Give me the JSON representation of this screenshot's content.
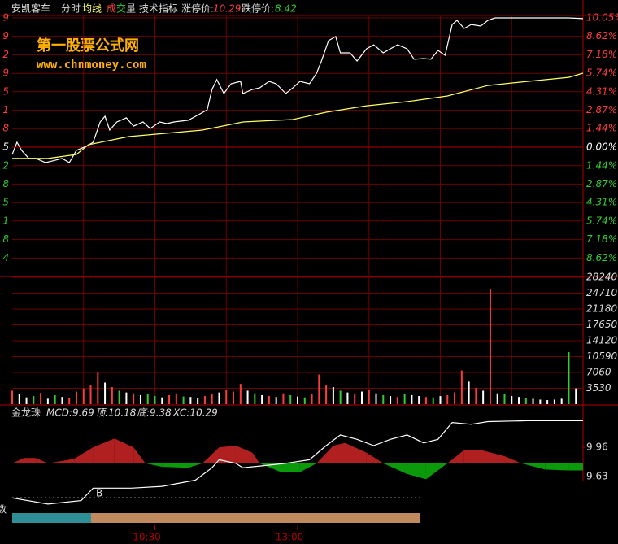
{
  "toolbar": {
    "name": "安凯客车",
    "tab_time": "分时",
    "tab_avg": "均线",
    "tab_vol_1": "成",
    "tab_vol_2": "交",
    "tab_vol_3": "量",
    "tab_tech": "技术指标",
    "limit_up_label": "涨停价:",
    "limit_up": "10.29",
    "limit_down_label": "跌停价:",
    "limit_down": "8.42"
  },
  "watermark": {
    "title": "第一股票公式网",
    "url": "www.chnmoney.com"
  },
  "chart_data": [
    {
      "type": "line",
      "xlim": [
        0,
        240
      ],
      "ylim": [
        -10.05,
        10.05
      ],
      "xgrid_lines": [
        30,
        60,
        90,
        120,
        150,
        180,
        210
      ],
      "up_color": "#ff3c3c",
      "down_color": "#33cc33",
      "flat_color": "#ffffff",
      "grid": true,
      "yticks": [
        {
          "value": 10.05,
          "label": "10.05%"
        },
        {
          "value": 8.62,
          "label": "8.62%"
        },
        {
          "value": 7.18,
          "label": "7.18%"
        },
        {
          "value": 5.74,
          "label": "5.74%"
        },
        {
          "value": 4.31,
          "label": "4.31%"
        },
        {
          "value": 2.87,
          "label": "2.87%"
        },
        {
          "value": 1.44,
          "label": "1.44%"
        },
        {
          "value": 0,
          "label": "0.00%"
        },
        {
          "value": -1.44,
          "label": "1.44%"
        },
        {
          "value": -2.87,
          "label": "2.87%"
        },
        {
          "value": -4.31,
          "label": "4.31%"
        },
        {
          "value": -5.74,
          "label": "5.74%"
        },
        {
          "value": -7.18,
          "label": "7.18%"
        },
        {
          "value": -8.62,
          "label": "8.62%"
        }
      ],
      "left_tick_labels": [
        "9",
        "9",
        "2",
        "9",
        "5",
        "1",
        "8",
        "5",
        "2",
        "8",
        "5",
        "1",
        "8",
        "4"
      ],
      "series": [
        {
          "color": "#ffffff",
          "x": [
            0,
            2,
            4,
            7,
            10,
            14,
            17,
            21,
            24,
            27,
            31,
            34,
            37,
            39,
            41,
            44,
            48,
            51,
            55,
            58,
            62,
            65,
            68,
            74,
            79,
            82,
            84,
            86,
            89,
            92,
            96,
            97,
            101,
            104,
            108,
            111,
            115,
            118,
            121,
            125,
            128,
            130,
            133,
            136,
            138,
            142,
            145,
            149,
            152,
            156,
            159,
            162,
            166,
            169,
            173,
            176,
            179,
            182,
            185,
            187,
            190,
            193,
            197,
            200,
            203,
            217,
            234,
            240
          ],
          "values": [
            -0.57,
            0.38,
            -0.25,
            -0.88,
            -0.88,
            -1.2,
            -1.07,
            -0.88,
            -1.2,
            -0.25,
            0.06,
            0.38,
            1.96,
            2.4,
            1.33,
            1.96,
            2.28,
            1.64,
            1.96,
            1.45,
            1.96,
            1.83,
            1.96,
            2.09,
            2.59,
            2.91,
            4.49,
            5.25,
            4.17,
            4.93,
            5.12,
            4.17,
            4.49,
            4.61,
            5.12,
            4.93,
            4.17,
            4.61,
            5.12,
            4.93,
            5.75,
            6.7,
            8.28,
            8.6,
            7.33,
            7.33,
            6.7,
            7.65,
            7.96,
            7.33,
            7.65,
            7.96,
            7.65,
            6.83,
            6.89,
            6.83,
            7.52,
            7.14,
            9.54,
            9.86,
            9.23,
            9.54,
            9.42,
            9.86,
            10.05,
            10.05,
            10.05,
            9.99
          ]
        },
        {
          "color": "#ffff66",
          "x": [
            0,
            15,
            27,
            32,
            49,
            80,
            97,
            118,
            132,
            149,
            166,
            183,
            200,
            217,
            234,
            240
          ],
          "values": [
            -0.88,
            -0.88,
            -0.57,
            0.19,
            0.82,
            1.33,
            1.96,
            2.15,
            2.72,
            3.22,
            3.54,
            3.98,
            4.8,
            5.12,
            5.43,
            5.75
          ]
        }
      ]
    },
    {
      "type": "bar",
      "xlim": [
        0,
        240
      ],
      "ylim": [
        0,
        28240
      ],
      "grid": true,
      "yticks": [
        28240,
        24710,
        21180,
        17650,
        14120,
        10590,
        7060,
        3530
      ],
      "x": [
        0,
        3,
        6,
        9,
        12,
        15,
        18,
        21,
        24,
        27,
        30,
        33,
        36,
        39,
        42,
        45,
        48,
        51,
        54,
        57,
        60,
        63,
        66,
        69,
        72,
        75,
        78,
        81,
        84,
        87,
        90,
        93,
        96,
        99,
        102,
        105,
        108,
        111,
        114,
        117,
        120,
        123,
        126,
        129,
        132,
        135,
        138,
        141,
        144,
        147,
        150,
        153,
        156,
        159,
        162,
        165,
        168,
        171,
        174,
        177,
        180,
        183,
        186,
        189,
        192,
        195,
        198,
        201,
        204,
        207,
        210,
        213,
        216,
        219,
        222,
        225,
        228,
        231,
        234,
        237
      ],
      "values": [
        3000,
        2200,
        1500,
        1800,
        2500,
        1200,
        2000,
        1600,
        1400,
        2800,
        3500,
        4200,
        7000,
        4800,
        3800,
        3000,
        2600,
        2400,
        2000,
        2200,
        1800,
        1500,
        2000,
        2400,
        1700,
        1600,
        1400,
        1800,
        2200,
        2600,
        3200,
        2800,
        4500,
        3000,
        2400,
        2000,
        1800,
        1600,
        2400,
        2000,
        1700,
        1500,
        2200,
        6600,
        4200,
        3800,
        3000,
        2600,
        2200,
        2800,
        3200,
        2400,
        2000,
        1800,
        1600,
        2200,
        2000,
        1800,
        1600,
        1500,
        1800,
        2000,
        2600,
        7500,
        5000,
        3600,
        3000,
        25700,
        2400,
        2200,
        1800,
        1600,
        1400,
        1200,
        1000,
        900,
        1000,
        1200,
        11600,
        3500
      ],
      "bar_colors": [
        "#ff3c3c",
        "#ffffff",
        "#ffffff",
        "#33cc33",
        "#ff3c3c",
        "#ffffff",
        "#33cc33",
        "#ffffff",
        "#ff3c3c",
        "#ff3c3c",
        "#ff3c3c",
        "#ff3c3c",
        "#ff3c3c",
        "#ffffff",
        "#ff3c3c",
        "#33cc33",
        "#ffffff",
        "#ff3c3c",
        "#ffffff",
        "#33cc33",
        "#33cc33",
        "#ffffff",
        "#ff3c3c",
        "#ff3c3c",
        "#33cc33",
        "#ffffff",
        "#ffffff",
        "#ff3c3c",
        "#ff3c3c",
        "#ffffff",
        "#ff3c3c",
        "#ff3c3c",
        "#ff3c3c",
        "#ffffff",
        "#33cc33",
        "#ffffff",
        "#ff3c3c",
        "#ffffff",
        "#ff3c3c",
        "#33cc33",
        "#ffffff",
        "#33cc33",
        "#ff3c3c",
        "#ff3c3c",
        "#ff3c3c",
        "#ffffff",
        "#33cc33",
        "#ffffff",
        "#ff3c3c",
        "#ffffff",
        "#ff3c3c",
        "#ffffff",
        "#33cc33",
        "#ffffff",
        "#ff3c3c",
        "#33cc33",
        "#ffffff",
        "#ffffff",
        "#ff3c3c",
        "#33cc33",
        "#ffffff",
        "#ff3c3c",
        "#ff3c3c",
        "#ff3c3c",
        "#ffffff",
        "#ff3c3c",
        "#ffffff",
        "#ff3c3c",
        "#ffffff",
        "#33cc33",
        "#ffffff",
        "#ffffff",
        "#33cc33",
        "#ffffff",
        "#ffffff",
        "#ffffff",
        "#ffffff",
        "#ffffff",
        "#33cc33",
        "#ffffff"
      ]
    },
    {
      "type": "indicator",
      "title": "金龙珠",
      "labels": [
        "MCD:9.69",
        "顶:10.18",
        "底:9.38",
        "XC:10.29"
      ],
      "xlim": [
        0,
        240
      ],
      "ylim": [
        9.2,
        10.42
      ],
      "yticks": [
        9.96,
        9.63
      ],
      "xticks": [
        {
          "value": 60,
          "label": "10:30"
        },
        {
          "value": 120,
          "label": "13:00"
        }
      ],
      "signal_label": "B",
      "cut_label": "数",
      "series": [
        {
          "color": "#ffffff",
          "x": [
            0,
            15,
            29,
            34,
            50,
            63,
            77,
            84,
            87,
            94,
            97,
            108,
            115,
            125,
            132,
            138,
            145,
            152,
            159,
            166,
            173,
            179,
            185,
            193,
            200,
            217,
            240
          ],
          "values": [
            9.39,
            9.32,
            9.36,
            9.5,
            9.5,
            9.52,
            9.59,
            9.73,
            9.82,
            9.78,
            9.73,
            9.76,
            9.78,
            9.82,
            9.98,
            10.1,
            10.05,
            9.98,
            10.05,
            10.1,
            10.01,
            10.05,
            10.24,
            10.22,
            10.25,
            10.26,
            10.26
          ]
        }
      ],
      "oscillator": {
        "baseline": 9.78,
        "up_color": "#b02020",
        "down_color": "#0a9a0a",
        "x": [
          0,
          5,
          10,
          15,
          26,
          34,
          43,
          51,
          56,
          63,
          74,
          80,
          87,
          94,
          101,
          104,
          113,
          121,
          128,
          135,
          140,
          149,
          156,
          166,
          174,
          183,
          190,
          197,
          207,
          214,
          224,
          234,
          240
        ],
        "values": [
          0,
          0.06,
          0.06,
          0,
          0.05,
          0.18,
          0.28,
          0.18,
          0,
          -0.04,
          -0.05,
          0,
          0.18,
          0.2,
          0.12,
          0,
          -0.1,
          -0.1,
          0,
          0.2,
          0.23,
          0.12,
          0,
          -0.12,
          -0.18,
          0,
          0.15,
          0.15,
          0.08,
          0,
          -0.07,
          -0.08,
          -0.08
        ]
      }
    }
  ]
}
